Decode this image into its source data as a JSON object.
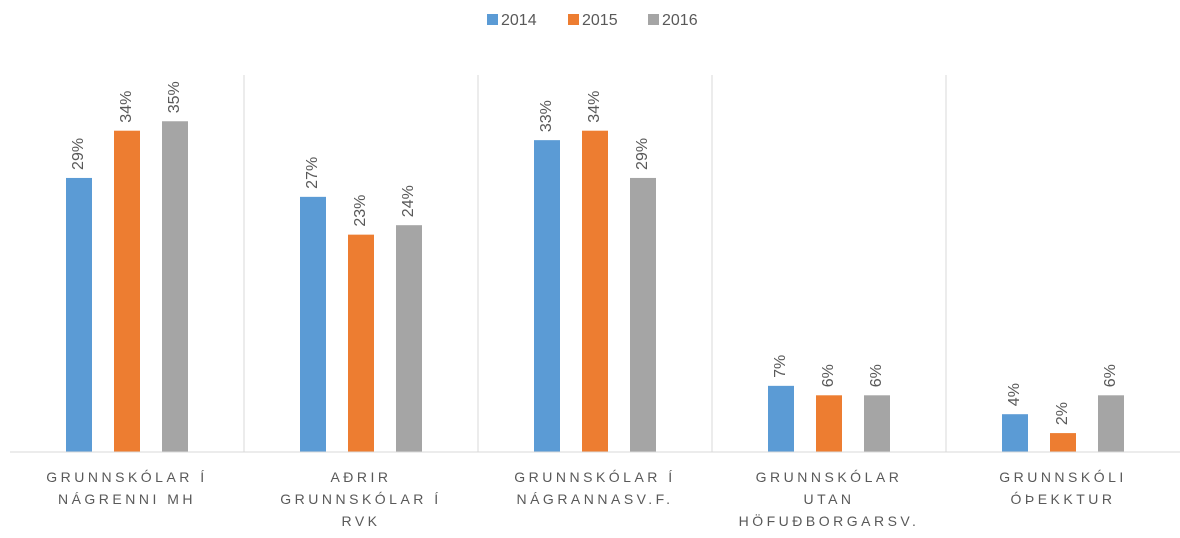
{
  "chart_data": {
    "type": "bar",
    "categories": [
      "GRUNNSKÓLAR Í\nNÁGRENNI MH",
      "AÐRIR\nGRUNNSKÓLAR Í\nRVK",
      "GRUNNSKÓLAR Í\nNÁGRANNASV.F.",
      "GRUNNSKÓLAR\nUTAN\nHÖFUÐBORGARSV.",
      "GRUNNSKÓLI\nÓÞEKKTUR"
    ],
    "series": [
      {
        "name": "2014",
        "color": "#5b9bd5",
        "values": [
          29,
          27,
          33,
          7,
          4
        ],
        "value_labels": [
          "29%",
          "27%",
          "33%",
          "7%",
          "4%"
        ]
      },
      {
        "name": "2015",
        "color": "#ed7d31",
        "values": [
          34,
          23,
          34,
          6,
          2
        ],
        "value_labels": [
          "34%",
          "23%",
          "34%",
          "6%",
          "2%"
        ]
      },
      {
        "name": "2016",
        "color": "#a5a5a5",
        "values": [
          35,
          24,
          29,
          6,
          6
        ],
        "value_labels": [
          "35%",
          "24%",
          "29%",
          "6%",
          "6%"
        ]
      }
    ],
    "legend": "top"
  }
}
